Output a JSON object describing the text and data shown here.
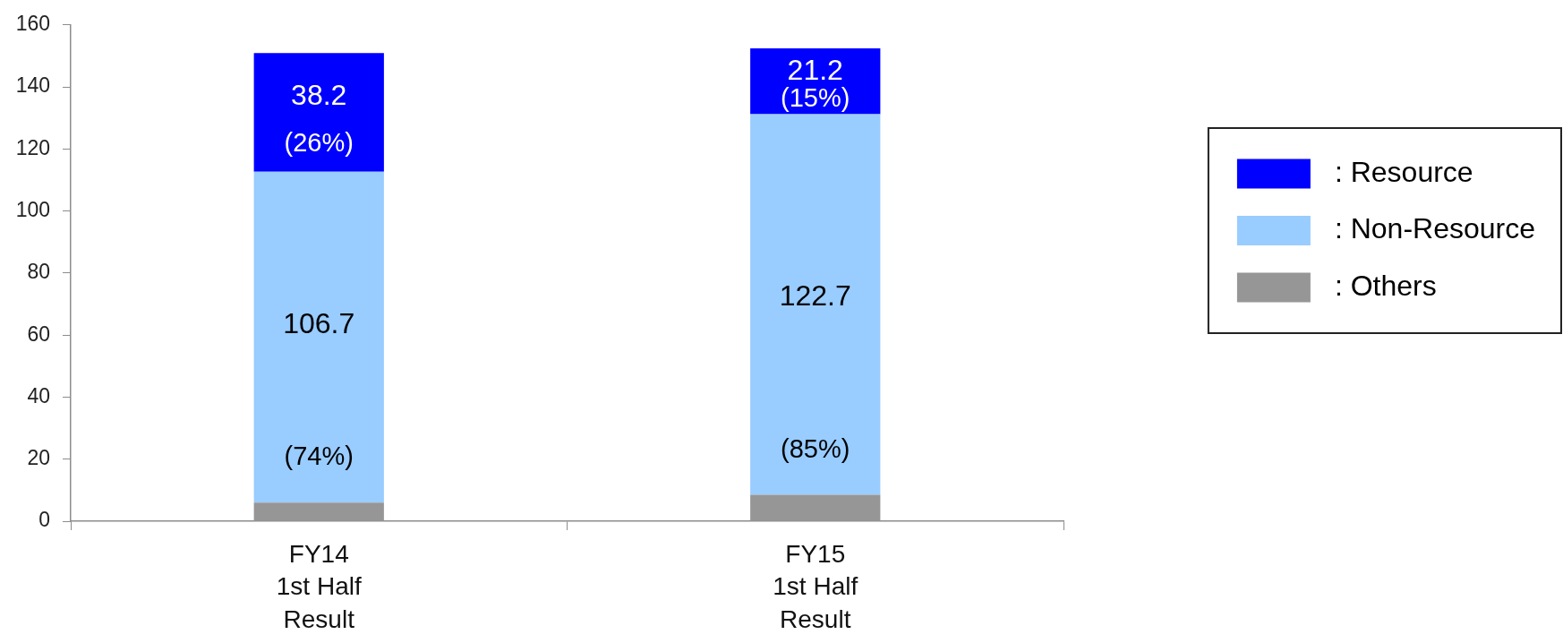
{
  "chart_data": {
    "type": "bar",
    "stacked": true,
    "categories": [
      "FY14\n1st Half\nResult",
      "FY15\n1st Half\nResult"
    ],
    "series": [
      {
        "name": ": Others",
        "color": "#969696",
        "values": [
          6,
          8.5
        ]
      },
      {
        "name": ": Non-Resource",
        "color": "#99ccff",
        "values": [
          106.7,
          122.7
        ],
        "value_labels": [
          "106.7\n(74%)",
          "122.7\n(85%)"
        ]
      },
      {
        "name": ": Resource",
        "color": "#0000ff",
        "values": [
          38.2,
          21.2
        ],
        "value_labels": [
          "38.2\n(26%)",
          "21.2\n(15%)"
        ]
      }
    ],
    "ylim": [
      0,
      160
    ],
    "yticks": [
      0,
      20,
      40,
      60,
      80,
      100,
      120,
      140,
      160
    ],
    "legend": "right"
  }
}
